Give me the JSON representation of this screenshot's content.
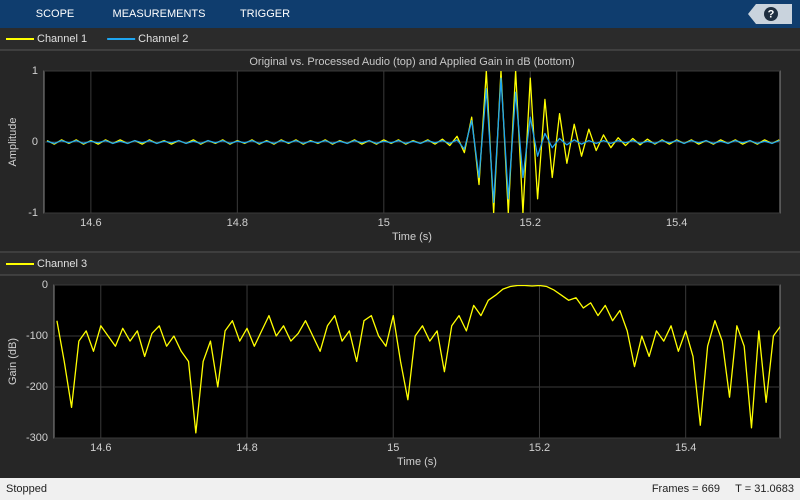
{
  "toolbar": {
    "tabs": [
      "SCOPE",
      "MEASUREMENTS",
      "TRIGGER"
    ],
    "help": "?"
  },
  "chart_data": [
    {
      "type": "line",
      "title": "Original vs. Processed Audio (top) and Applied Gain in dB (bottom)",
      "xlabel": "Time (s)",
      "ylabel": "Amplitude",
      "grid": true,
      "xlim": [
        14.536,
        15.541
      ],
      "ylim": [
        -1,
        1
      ],
      "xticks": [
        14.6,
        14.8,
        15,
        15.2,
        15.4
      ],
      "yticks": [
        -1,
        0,
        1
      ],
      "x": [
        14.54,
        14.55,
        14.56,
        14.57,
        14.58,
        14.59,
        14.6,
        14.61,
        14.62,
        14.63,
        14.64,
        14.65,
        14.66,
        14.67,
        14.68,
        14.69,
        14.7,
        14.71,
        14.72,
        14.73,
        14.74,
        14.75,
        14.76,
        14.77,
        14.78,
        14.79,
        14.8,
        14.81,
        14.82,
        14.83,
        14.84,
        14.85,
        14.86,
        14.87,
        14.88,
        14.89,
        14.9,
        14.91,
        14.92,
        14.93,
        14.94,
        14.95,
        14.96,
        14.97,
        14.98,
        14.99,
        15.0,
        15.01,
        15.02,
        15.03,
        15.04,
        15.05,
        15.06,
        15.07,
        15.08,
        15.09,
        15.1,
        15.11,
        15.12,
        15.13,
        15.14,
        15.15,
        15.16,
        15.17,
        15.18,
        15.19,
        15.2,
        15.21,
        15.22,
        15.23,
        15.24,
        15.25,
        15.26,
        15.27,
        15.28,
        15.29,
        15.3,
        15.31,
        15.32,
        15.33,
        15.34,
        15.35,
        15.36,
        15.37,
        15.38,
        15.39,
        15.4,
        15.41,
        15.42,
        15.43,
        15.44,
        15.45,
        15.46,
        15.47,
        15.48,
        15.49,
        15.5,
        15.51,
        15.52,
        15.53,
        15.54
      ],
      "series": [
        {
          "name": "Channel 1",
          "color": "#ffff00",
          "values": [
            0.02,
            -0.03,
            0.03,
            -0.02,
            0.03,
            -0.03,
            0.02,
            -0.03,
            0.03,
            -0.02,
            0.03,
            -0.02,
            0.02,
            -0.03,
            0.03,
            -0.02,
            0.02,
            -0.03,
            0.02,
            -0.02,
            0.03,
            -0.03,
            0.02,
            -0.02,
            0.03,
            -0.03,
            0.02,
            -0.02,
            0.03,
            -0.03,
            0.02,
            -0.03,
            0.03,
            -0.02,
            0.03,
            -0.03,
            0.02,
            -0.02,
            0.03,
            -0.03,
            0.02,
            -0.02,
            0.03,
            -0.03,
            0.02,
            -0.03,
            0.03,
            -0.02,
            0.03,
            -0.03,
            0.02,
            -0.02,
            0.03,
            -0.03,
            0.04,
            -0.05,
            0.08,
            -0.15,
            0.35,
            -0.6,
            1,
            -1,
            1,
            -1,
            1,
            -1,
            0.9,
            -0.8,
            0.6,
            -0.5,
            0.4,
            -0.3,
            0.25,
            -0.2,
            0.18,
            -0.12,
            0.1,
            -0.08,
            0.06,
            -0.05,
            0.05,
            -0.04,
            0.04,
            -0.03,
            0.03,
            -0.03,
            0.03,
            -0.02,
            0.03,
            -0.03,
            0.02,
            -0.03,
            0.03,
            -0.02,
            0.03,
            -0.03,
            0.02,
            -0.03,
            0.03,
            -0.02,
            0.03
          ]
        },
        {
          "name": "Channel 2",
          "color": "#1ea5f0",
          "values": [
            0.01,
            -0.02,
            0.02,
            -0.01,
            0.02,
            -0.02,
            0.01,
            -0.01,
            0.02,
            -0.02,
            0.01,
            -0.02,
            0.02,
            -0.01,
            0.02,
            -0.02,
            0.01,
            -0.01,
            0.02,
            -0.02,
            0.01,
            -0.02,
            0.02,
            -0.01,
            0.02,
            -0.02,
            0.01,
            -0.01,
            0.02,
            -0.02,
            0.01,
            -0.02,
            0.02,
            -0.01,
            0.02,
            -0.02,
            0.01,
            -0.01,
            0.02,
            -0.02,
            0.01,
            -0.02,
            0.02,
            -0.01,
            0.02,
            -0.02,
            0.01,
            -0.01,
            0.02,
            -0.02,
            0.01,
            -0.02,
            0.02,
            -0.01,
            0.02,
            -0.02,
            0.03,
            -0.1,
            0.3,
            -0.5,
            0.75,
            -0.85,
            0.9,
            -0.8,
            0.7,
            -0.5,
            0.35,
            -0.2,
            0.12,
            -0.08,
            0.05,
            -0.04,
            0.03,
            -0.03,
            0.02,
            -0.02,
            0.02,
            -0.02,
            0.02,
            -0.01,
            0.02,
            -0.02,
            0.01,
            -0.02,
            0.02,
            -0.01,
            0.02,
            -0.02,
            0.02,
            -0.01,
            0.02,
            -0.02,
            0.01,
            -0.02,
            0.02,
            -0.01,
            0.02,
            -0.02,
            0.01,
            -0.02,
            0.02
          ]
        }
      ]
    },
    {
      "type": "line",
      "xlabel": "Time (s)",
      "ylabel": "Gain (dB)",
      "grid": true,
      "xlim": [
        14.536,
        15.529
      ],
      "ylim": [
        -300,
        0
      ],
      "xticks": [
        14.6,
        14.8,
        15,
        15.2,
        15.4
      ],
      "yticks": [
        -300,
        -200,
        -100,
        0
      ],
      "x": [
        14.54,
        14.55,
        14.56,
        14.57,
        14.58,
        14.59,
        14.6,
        14.61,
        14.62,
        14.63,
        14.64,
        14.65,
        14.66,
        14.67,
        14.68,
        14.69,
        14.7,
        14.71,
        14.72,
        14.73,
        14.74,
        14.75,
        14.76,
        14.77,
        14.78,
        14.79,
        14.8,
        14.81,
        14.82,
        14.83,
        14.84,
        14.85,
        14.86,
        14.87,
        14.88,
        14.89,
        14.9,
        14.91,
        14.92,
        14.93,
        14.94,
        14.95,
        14.96,
        14.97,
        14.98,
        14.99,
        15.0,
        15.01,
        15.02,
        15.03,
        15.04,
        15.05,
        15.06,
        15.07,
        15.08,
        15.09,
        15.1,
        15.11,
        15.12,
        15.13,
        15.14,
        15.15,
        15.16,
        15.17,
        15.18,
        15.19,
        15.2,
        15.21,
        15.22,
        15.23,
        15.24,
        15.25,
        15.26,
        15.27,
        15.28,
        15.29,
        15.3,
        15.31,
        15.32,
        15.33,
        15.34,
        15.35,
        15.36,
        15.37,
        15.38,
        15.39,
        15.4,
        15.41,
        15.42,
        15.43,
        15.44,
        15.45,
        15.46,
        15.47,
        15.48,
        15.49,
        15.5,
        15.51,
        15.52,
        15.53
      ],
      "series": [
        {
          "name": "Channel 3",
          "color": "#ffff00",
          "values": [
            -70,
            -150,
            -240,
            -110,
            -90,
            -130,
            -80,
            -100,
            -120,
            -85,
            -110,
            -90,
            -140,
            -95,
            -80,
            -120,
            -100,
            -130,
            -150,
            -290,
            -150,
            -110,
            -200,
            -90,
            -70,
            -110,
            -85,
            -120,
            -90,
            -60,
            -100,
            -80,
            -110,
            -95,
            -70,
            -100,
            -130,
            -80,
            -60,
            -110,
            -90,
            -150,
            -70,
            -60,
            -100,
            -120,
            -60,
            -150,
            -225,
            -100,
            -80,
            -110,
            -90,
            -170,
            -80,
            -60,
            -90,
            -40,
            -60,
            -30,
            -20,
            -8,
            -3,
            -1,
            -1,
            -2,
            -1,
            -3,
            -10,
            -20,
            -30,
            -25,
            -45,
            -35,
            -60,
            -40,
            -70,
            -50,
            -90,
            -160,
            -100,
            -140,
            -90,
            -110,
            -80,
            -130,
            -90,
            -140,
            -275,
            -120,
            -70,
            -110,
            -220,
            -80,
            -120,
            -280,
            -90,
            -230,
            -100,
            -80
          ]
        }
      ]
    }
  ],
  "status": {
    "state": "Stopped",
    "frames": "Frames = 669",
    "time": "T = 31.0683"
  }
}
